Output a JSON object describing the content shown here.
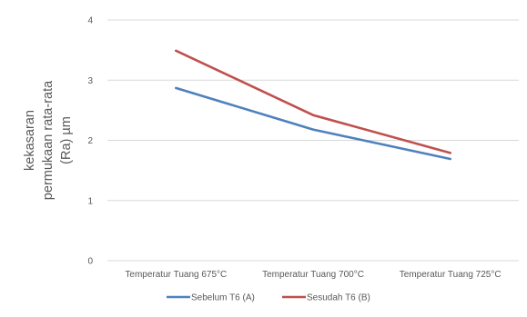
{
  "chart_data": {
    "type": "line",
    "title": "",
    "xlabel": "",
    "ylabel_lines": [
      "kekasaran",
      "permukaan rata-rata",
      "(Ra) µm"
    ],
    "categories": [
      "Temperatur Tuang 675°C",
      "Temperatur Tuang 700°C",
      "Temperatur Tuang 725°C"
    ],
    "ylim": [
      0,
      4
    ],
    "yticks": [
      "0",
      "1",
      "2",
      "3",
      "4"
    ],
    "grid": true,
    "legend_position": "bottom",
    "series": [
      {
        "name": "Sebelum T6 (A)",
        "color": "#4f81bd",
        "values": [
          2.87,
          2.18,
          1.69
        ]
      },
      {
        "name": "Sesudah T6 (B)",
        "color": "#c0504d",
        "values": [
          3.49,
          2.42,
          1.79
        ]
      }
    ]
  }
}
